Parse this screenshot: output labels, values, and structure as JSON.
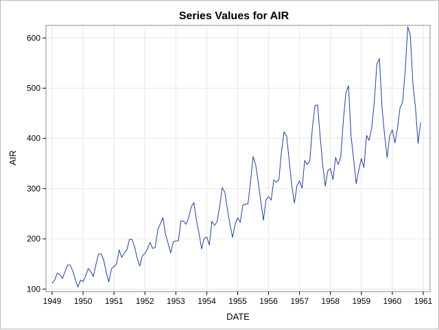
{
  "chart_data": {
    "type": "line",
    "title": "Series Values for AIR",
    "xlabel": "DATE",
    "ylabel": "AIR",
    "x_ticks": [
      "1949",
      "1950",
      "1951",
      "1952",
      "1953",
      "1954",
      "1955",
      "1956",
      "1957",
      "1958",
      "1959",
      "1960",
      "1961"
    ],
    "y_ticks": [
      100,
      200,
      300,
      400,
      500,
      600
    ],
    "xlim": [
      1949,
      1961
    ],
    "ylim": [
      95,
      625
    ],
    "grid": true,
    "x_start": 1949,
    "step": "monthly",
    "series": [
      {
        "color": "#1f3f99",
        "values": [
          112,
          118,
          132,
          129,
          121,
          135,
          148,
          148,
          136,
          119,
          104,
          118,
          115,
          126,
          141,
          135,
          125,
          149,
          170,
          170,
          158,
          133,
          114,
          140,
          145,
          150,
          178,
          163,
          172,
          178,
          199,
          199,
          184,
          162,
          146,
          166,
          171,
          180,
          193,
          181,
          183,
          218,
          230,
          242,
          209,
          191,
          172,
          194,
          196,
          196,
          236,
          235,
          229,
          243,
          264,
          272,
          237,
          211,
          180,
          201,
          204,
          188,
          235,
          227,
          234,
          264,
          302,
          293,
          259,
          229,
          203,
          229,
          242,
          233,
          267,
          269,
          270,
          315,
          364,
          347,
          312,
          274,
          237,
          278,
          284,
          277,
          317,
          313,
          318,
          374,
          413,
          405,
          355,
          306,
          271,
          306,
          315,
          301,
          356,
          348,
          355,
          422,
          465,
          467,
          404,
          347,
          305,
          336,
          340,
          318,
          362,
          348,
          363,
          435,
          491,
          505,
          404,
          359,
          310,
          337,
          360,
          342,
          406,
          396,
          420,
          472,
          548,
          559,
          463,
          407,
          362,
          405,
          417,
          391,
          419,
          461,
          472,
          535,
          622,
          606,
          508,
          461,
          390,
          432
        ]
      }
    ]
  }
}
